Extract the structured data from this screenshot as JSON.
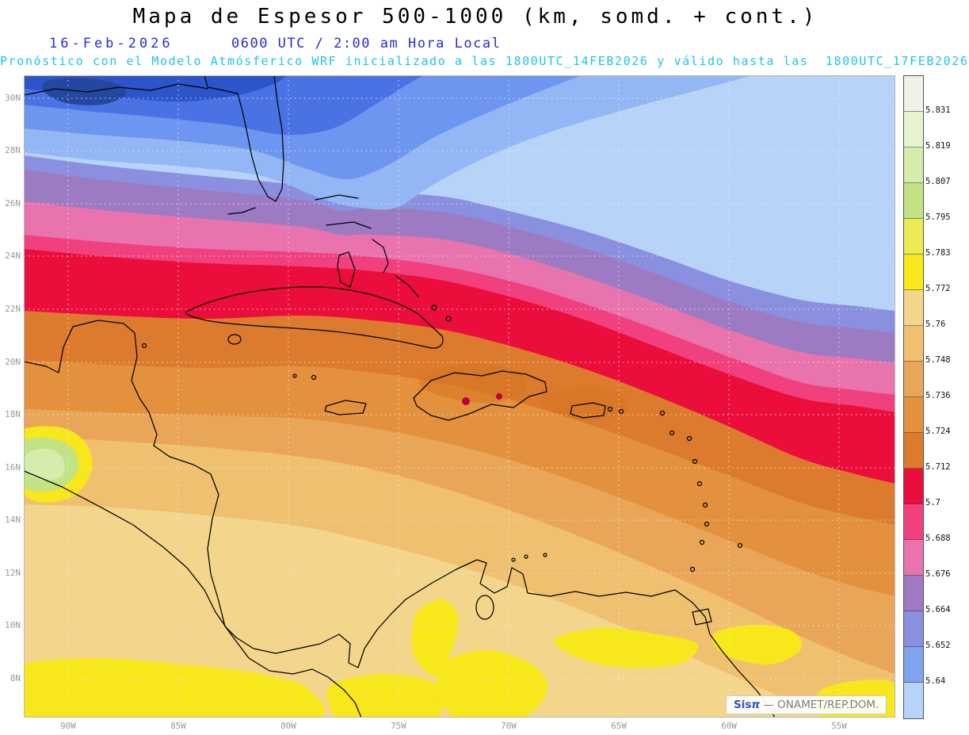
{
  "header": {
    "title": "Mapa de Espesor 500-1000 (km, somd. + cont.)",
    "date": "16-Feb-2026",
    "time_line": "0600 UTC / 2:00 am Hora Local",
    "forecast_line": "Pronóstico con el Modelo Atmósferico WRF inicializado a las 1800UTC_14FEB2026 y válido hasta las  1800UTC_17FEB2026"
  },
  "axes": {
    "lat_labels": [
      "30N",
      "28N",
      "26N",
      "24N",
      "22N",
      "20N",
      "18N",
      "16N",
      "14N",
      "12N",
      "10N",
      "8N"
    ],
    "lon_labels": [
      "90W",
      "85W",
      "80W",
      "75W",
      "70W",
      "65W",
      "60W",
      "55W"
    ]
  },
  "colorbar": {
    "labels": [
      "5.831",
      "5.819",
      "5.807",
      "5.795",
      "5.783",
      "5.772",
      "5.76",
      "5.748",
      "5.736",
      "5.724",
      "5.712",
      "5.7",
      "5.688",
      "5.676",
      "5.664",
      "5.652",
      "5.64"
    ]
  },
  "watermark": {
    "brand": "Sis",
    "pi": "π",
    "suffix": " — ONAMET/REP.DOM."
  },
  "colors": {
    "title_black": "#000000",
    "date_blue": "#2a2ad0",
    "forecast_cyan": "#1ec3f2",
    "red_band": "#EB0E3C",
    "yellow": "#F8E71A"
  },
  "chart_data": {
    "type": "heatmap",
    "title": "Mapa de Espesor 500-1000 (km, somd. + cont.)",
    "variable": "500-1000 hPa thickness (shaded + contours)",
    "units": "km",
    "region": "Gulf of Mexico and Caribbean, approx 7N-31N / 92W-52W",
    "model_run": "WRF inicializado 1800UTC_14FEB2026, válido hasta 1800UTC_17FEB2026",
    "valid_time": "16-Feb-2026 0600 UTC / 2:00 am Hora Local",
    "levels": [
      5.831,
      5.819,
      5.807,
      5.795,
      5.783,
      5.772,
      5.76,
      5.748,
      5.736,
      5.724,
      5.712,
      5.7,
      5.688,
      5.676,
      5.664,
      5.652,
      5.64
    ],
    "palette_top_to_bottom": [
      "#F2F1E9",
      "#E7F3CE",
      "#D5ECAC",
      "#C1E383",
      "#E9EC55",
      "#F8E71A",
      "#F3D68C",
      "#EFC070",
      "#EAA658",
      "#E4913E",
      "#DC7B2D",
      "#EB0E3C",
      "#F0417E",
      "#E973AC",
      "#9C7BC3",
      "#8A8FE0",
      "#7FA3EE",
      "#B7D3F8"
    ],
    "x_ticks": [
      "90W",
      "85W",
      "80W",
      "75W",
      "70W",
      "65W",
      "60W",
      "55W"
    ],
    "y_ticks": [
      "30N",
      "28N",
      "26N",
      "24N",
      "22N",
      "20N",
      "18N",
      "16N",
      "14N",
      "12N",
      "10N",
      "8N"
    ],
    "gradient": "thickness increases from north (blues, <5.64-5.676, cold trough over top-left/Gulf states) to south (tan/wheat 5.748-5.772 with yellow 5.772-5.783 patches over Central America and Venezuela); crimson band 5.7-5.712 slopes from ~25N at 90W down to ~17-18N at 55W across Cuba/Hispaniola latitudes",
    "bands_north_to_south": [
      "dark blue",
      "blue",
      "medium blue",
      "light blue",
      "pale blue (large NE area)",
      "periwinkle",
      "slate purple",
      "pink",
      "deep pink",
      "red",
      "dark orange",
      "orange",
      "light orange",
      "tan",
      "wheat",
      "yellow patches",
      "yellow-green spots at west edge"
    ],
    "grid": "dotted 2-deg latitude / 5-deg longitude graticule",
    "legend_position": "right vertical colorbar"
  }
}
